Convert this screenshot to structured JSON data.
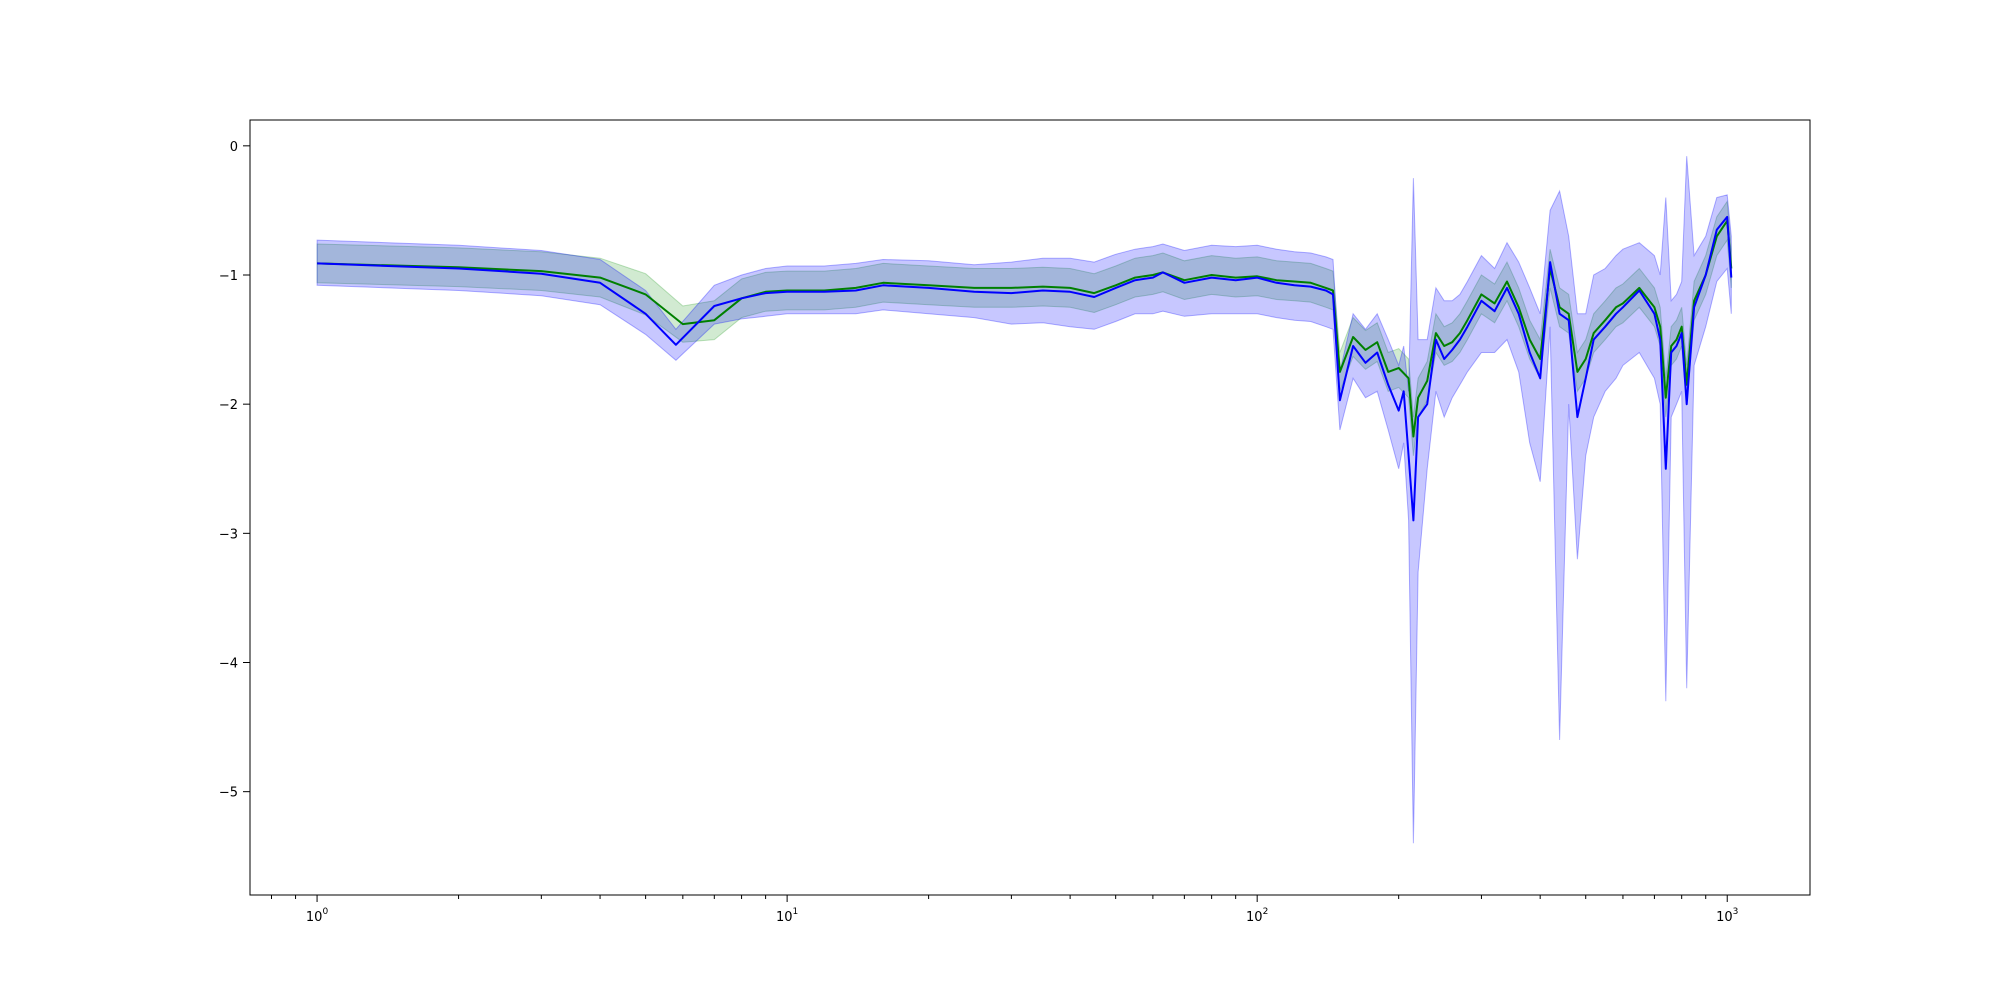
{
  "chart_data": {
    "type": "line",
    "title": "",
    "xlabel": "",
    "ylabel": "",
    "xscale": "log",
    "xlim": [
      0.72,
      1500
    ],
    "ylim": [
      -5.8,
      0.2
    ],
    "grid": false,
    "legend": "none",
    "x_ticks": [
      {
        "value": 1,
        "base": "10",
        "exp": "0"
      },
      {
        "value": 10,
        "base": "10",
        "exp": "1"
      },
      {
        "value": 100,
        "base": "10",
        "exp": "2"
      },
      {
        "value": 1000,
        "base": "10",
        "exp": "3"
      }
    ],
    "y_ticks": [
      {
        "value": 0,
        "label": "0"
      },
      {
        "value": -1,
        "label": "−1"
      },
      {
        "value": -2,
        "label": "−2"
      },
      {
        "value": -3,
        "label": "−3"
      },
      {
        "value": -4,
        "label": "−4"
      },
      {
        "value": -5,
        "label": "−5"
      }
    ],
    "series": [
      {
        "color": "#008000",
        "band_color": "#2ca02c",
        "x": [
          1,
          2,
          3,
          4,
          5,
          6,
          7,
          8,
          9,
          10,
          12,
          14,
          16,
          20,
          25,
          30,
          35,
          40,
          45,
          50,
          55,
          60,
          63,
          70,
          80,
          90,
          100,
          110,
          120,
          130,
          140,
          145,
          150,
          160,
          170,
          180,
          190,
          200,
          210,
          215,
          220,
          230,
          240,
          250,
          260,
          270,
          280,
          300,
          320,
          340,
          360,
          380,
          400,
          420,
          440,
          460,
          480,
          500,
          520,
          550,
          580,
          600,
          650,
          700,
          720,
          740,
          760,
          780,
          800,
          820,
          850,
          900,
          950,
          1000,
          1020
        ],
        "y": [
          -0.91,
          -0.94,
          -0.97,
          -1.02,
          -1.15,
          -1.38,
          -1.35,
          -1.18,
          -1.13,
          -1.12,
          -1.12,
          -1.1,
          -1.06,
          -1.08,
          -1.1,
          -1.1,
          -1.09,
          -1.1,
          -1.14,
          -1.08,
          -1.02,
          -1.0,
          -0.98,
          -1.04,
          -1.0,
          -1.02,
          -1.01,
          -1.04,
          -1.05,
          -1.06,
          -1.1,
          -1.12,
          -1.75,
          -1.48,
          -1.58,
          -1.52,
          -1.75,
          -1.72,
          -1.8,
          -2.25,
          -1.95,
          -1.82,
          -1.45,
          -1.55,
          -1.52,
          -1.45,
          -1.35,
          -1.15,
          -1.22,
          -1.05,
          -1.25,
          -1.5,
          -1.65,
          -0.95,
          -1.25,
          -1.3,
          -1.75,
          -1.65,
          -1.45,
          -1.35,
          -1.25,
          -1.22,
          -1.1,
          -1.25,
          -1.4,
          -1.95,
          -1.55,
          -1.5,
          -1.4,
          -1.85,
          -1.2,
          -1.0,
          -0.7,
          -0.58,
          -0.95
        ],
        "lower": [
          -1.06,
          -1.09,
          -1.12,
          -1.17,
          -1.31,
          -1.52,
          -1.5,
          -1.33,
          -1.28,
          -1.27,
          -1.27,
          -1.25,
          -1.21,
          -1.23,
          -1.25,
          -1.25,
          -1.24,
          -1.25,
          -1.29,
          -1.23,
          -1.17,
          -1.15,
          -1.13,
          -1.19,
          -1.15,
          -1.17,
          -1.16,
          -1.19,
          -1.2,
          -1.21,
          -1.25,
          -1.27,
          -1.9,
          -1.63,
          -1.73,
          -1.67,
          -1.9,
          -1.87,
          -1.95,
          -2.4,
          -2.1,
          -1.97,
          -1.6,
          -1.7,
          -1.67,
          -1.6,
          -1.5,
          -1.3,
          -1.37,
          -1.2,
          -1.4,
          -1.65,
          -1.8,
          -1.1,
          -1.4,
          -1.45,
          -1.9,
          -1.8,
          -1.6,
          -1.5,
          -1.4,
          -1.37,
          -1.25,
          -1.4,
          -1.55,
          -2.1,
          -1.7,
          -1.65,
          -1.55,
          -2.0,
          -1.35,
          -1.15,
          -0.85,
          -0.73,
          -1.1
        ],
        "upper": [
          -0.76,
          -0.79,
          -0.82,
          -0.87,
          -0.99,
          -1.24,
          -1.2,
          -1.03,
          -0.98,
          -0.97,
          -0.97,
          -0.95,
          -0.91,
          -0.93,
          -0.95,
          -0.95,
          -0.94,
          -0.95,
          -0.99,
          -0.93,
          -0.87,
          -0.85,
          -0.83,
          -0.89,
          -0.85,
          -0.87,
          -0.86,
          -0.89,
          -0.9,
          -0.91,
          -0.95,
          -0.97,
          -1.6,
          -1.33,
          -1.43,
          -1.37,
          -1.6,
          -1.57,
          -1.65,
          -2.1,
          -1.8,
          -1.67,
          -1.3,
          -1.4,
          -1.37,
          -1.3,
          -1.2,
          -1.0,
          -1.07,
          -0.9,
          -1.1,
          -1.35,
          -1.5,
          -0.8,
          -1.1,
          -1.15,
          -1.6,
          -1.5,
          -1.3,
          -1.2,
          -1.1,
          -1.07,
          -0.95,
          -1.1,
          -1.25,
          -1.8,
          -1.4,
          -1.35,
          -1.25,
          -1.7,
          -1.05,
          -0.85,
          -0.55,
          -0.43,
          -0.8
        ]
      },
      {
        "color": "#0000ff",
        "band_color": "#0000ff",
        "x": [
          1,
          2,
          3,
          4,
          5,
          5.8,
          7,
          8,
          9,
          10,
          12,
          14,
          16,
          20,
          25,
          30,
          35,
          40,
          45,
          50,
          55,
          60,
          63,
          70,
          80,
          90,
          100,
          110,
          120,
          130,
          140,
          145,
          150,
          160,
          170,
          180,
          190,
          200,
          205,
          210,
          215,
          220,
          230,
          240,
          250,
          260,
          270,
          280,
          300,
          320,
          340,
          360,
          380,
          400,
          420,
          440,
          460,
          480,
          500,
          520,
          550,
          580,
          600,
          650,
          700,
          720,
          740,
          760,
          780,
          800,
          820,
          850,
          900,
          950,
          1000,
          1020
        ],
        "y": [
          -0.91,
          -0.95,
          -0.99,
          -1.06,
          -1.3,
          -1.54,
          -1.24,
          -1.18,
          -1.14,
          -1.13,
          -1.13,
          -1.12,
          -1.08,
          -1.1,
          -1.13,
          -1.14,
          -1.12,
          -1.13,
          -1.17,
          -1.1,
          -1.04,
          -1.02,
          -0.98,
          -1.06,
          -1.02,
          -1.04,
          -1.02,
          -1.06,
          -1.08,
          -1.09,
          -1.12,
          -1.15,
          -1.97,
          -1.55,
          -1.68,
          -1.6,
          -1.85,
          -2.05,
          -1.9,
          -2.4,
          -2.9,
          -2.1,
          -2.0,
          -1.5,
          -1.65,
          -1.58,
          -1.5,
          -1.4,
          -1.2,
          -1.28,
          -1.1,
          -1.3,
          -1.6,
          -1.8,
          -0.9,
          -1.3,
          -1.35,
          -2.1,
          -1.8,
          -1.5,
          -1.4,
          -1.3,
          -1.25,
          -1.12,
          -1.3,
          -1.5,
          -2.5,
          -1.6,
          -1.55,
          -1.45,
          -2.0,
          -1.25,
          -1.0,
          -0.65,
          -0.55,
          -1.02
        ],
        "lower": [
          -1.08,
          -1.12,
          -1.16,
          -1.23,
          -1.46,
          -1.66,
          -1.38,
          -1.34,
          -1.32,
          -1.3,
          -1.3,
          -1.3,
          -1.27,
          -1.3,
          -1.33,
          -1.38,
          -1.37,
          -1.4,
          -1.42,
          -1.36,
          -1.3,
          -1.3,
          -1.28,
          -1.32,
          -1.3,
          -1.3,
          -1.3,
          -1.33,
          -1.35,
          -1.36,
          -1.4,
          -1.42,
          -2.2,
          -1.8,
          -1.95,
          -1.9,
          -2.2,
          -2.5,
          -2.3,
          -2.9,
          -5.4,
          -3.3,
          -2.5,
          -1.9,
          -2.1,
          -1.95,
          -1.85,
          -1.75,
          -1.6,
          -1.6,
          -1.5,
          -1.75,
          -2.3,
          -2.6,
          -1.4,
          -4.6,
          -2.0,
          -3.2,
          -2.4,
          -2.1,
          -1.9,
          -1.8,
          -1.7,
          -1.6,
          -1.8,
          -2.0,
          -4.3,
          -2.1,
          -2.0,
          -1.9,
          -4.2,
          -1.7,
          -1.4,
          -1.05,
          -0.95,
          -1.3
        ],
        "upper": [
          -0.73,
          -0.77,
          -0.81,
          -0.88,
          -1.12,
          -1.42,
          -1.08,
          -1.0,
          -0.95,
          -0.93,
          -0.93,
          -0.91,
          -0.88,
          -0.89,
          -0.92,
          -0.9,
          -0.87,
          -0.87,
          -0.9,
          -0.84,
          -0.8,
          -0.78,
          -0.76,
          -0.81,
          -0.77,
          -0.78,
          -0.77,
          -0.8,
          -0.82,
          -0.83,
          -0.86,
          -0.88,
          -1.75,
          -1.3,
          -1.42,
          -1.3,
          -1.5,
          -1.7,
          -1.55,
          -1.9,
          -0.25,
          -1.5,
          -1.5,
          -1.1,
          -1.2,
          -1.2,
          -1.15,
          -1.05,
          -0.85,
          -0.95,
          -0.75,
          -0.9,
          -1.1,
          -1.3,
          -0.5,
          -0.35,
          -0.7,
          -1.3,
          -1.3,
          -1.0,
          -0.95,
          -0.85,
          -0.8,
          -0.75,
          -0.85,
          -1.0,
          -0.4,
          -1.2,
          -1.15,
          -1.05,
          -0.08,
          -0.85,
          -0.7,
          -0.4,
          -0.38,
          -0.7
        ]
      }
    ]
  }
}
